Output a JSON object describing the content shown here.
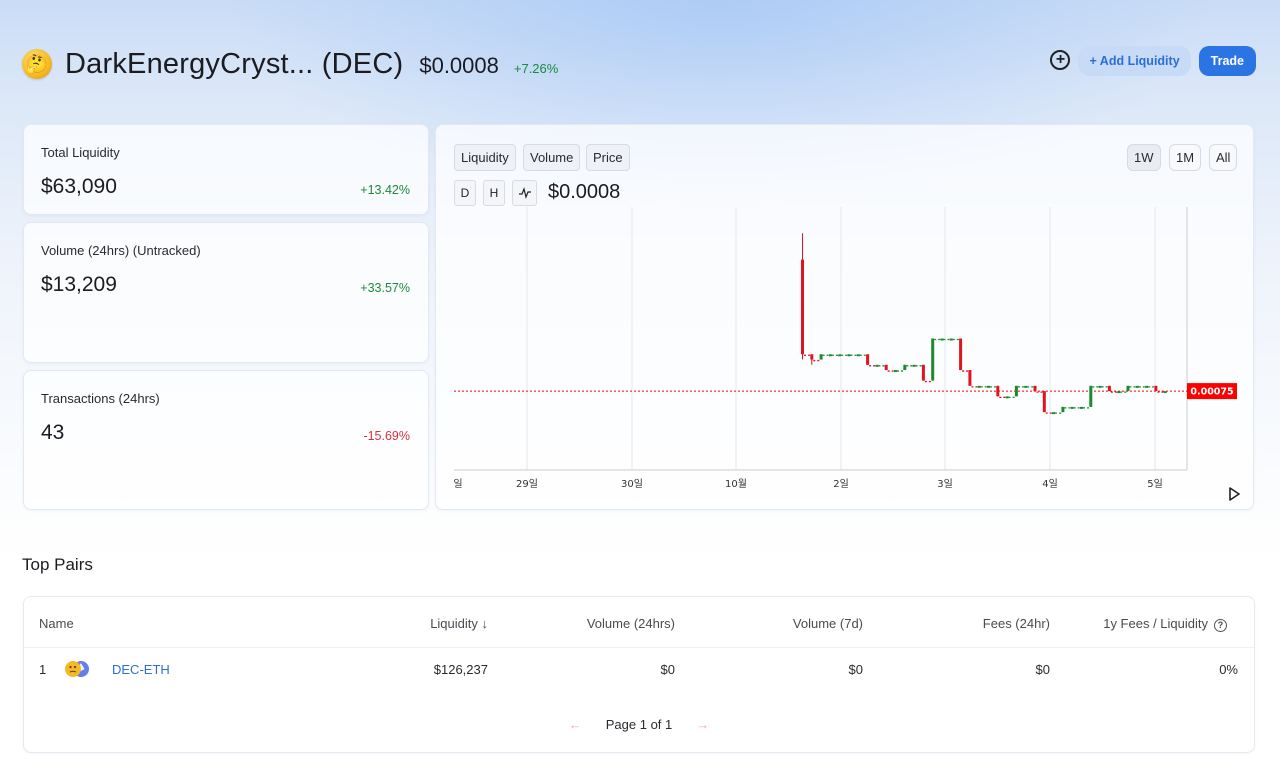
{
  "header": {
    "logo_icon": "thinking-face-icon",
    "token_name": "DarkEnergyCryst... (DEC)",
    "price": "$0.0008",
    "change": "+7.26%",
    "add_liquidity_label": "+ Add Liquidity",
    "trade_label": "Trade",
    "plus_icon": "plus-circle-icon"
  },
  "stats": [
    {
      "label": "Total Liquidity",
      "value": "$63,090",
      "change": "+13.42%"
    },
    {
      "label": "Volume (24hrs) (Untracked)",
      "value": "$13,209",
      "change": "+33.57%"
    },
    {
      "label": "Transactions (24hrs)",
      "value": "43",
      "change": "-15.69%"
    }
  ],
  "chart": {
    "tabs": [
      "Liquidity",
      "Volume",
      "Price"
    ],
    "ranges": [
      "1W",
      "1M",
      "All"
    ],
    "active_range": "1W",
    "candle_buttons": [
      "D",
      "H"
    ],
    "line_icon": "line-chart-icon",
    "current_price": "$0.0008",
    "price_marker": "0.00075",
    "colors": {
      "up": "#1e8a2e",
      "down": "#e0141e",
      "marker": "#ff0000"
    }
  },
  "chart_data": {
    "type": "candlestick",
    "x_tick_labels": [
      "일",
      "29일",
      "30일",
      "10월",
      "2일",
      "3일",
      "4일",
      "5일"
    ],
    "current_price_line": 0.00075,
    "grid": "vertical only",
    "candles": [
      {
        "o": 0.001,
        "c": 0.00082,
        "h": 0.00105,
        "l": 0.00081
      },
      {
        "o": 0.00082,
        "c": 0.00081,
        "h": 0.00082,
        "l": 0.0008
      },
      {
        "o": 0.00081,
        "c": 0.00082,
        "h": 0.00082,
        "l": 0.00081
      },
      {
        "o": 0.00082,
        "c": 0.00082,
        "h": 0.00082,
        "l": 0.00082
      },
      {
        "o": 0.00082,
        "c": 0.00082,
        "h": 0.00082,
        "l": 0.00082
      },
      {
        "o": 0.00082,
        "c": 0.00082,
        "h": 0.00082,
        "l": 0.00082
      },
      {
        "o": 0.00082,
        "c": 0.00082,
        "h": 0.00082,
        "l": 0.00082
      },
      {
        "o": 0.00082,
        "c": 0.0008,
        "h": 0.00082,
        "l": 0.0008
      },
      {
        "o": 0.0008,
        "c": 0.0008,
        "h": 0.0008,
        "l": 0.0008
      },
      {
        "o": 0.0008,
        "c": 0.00079,
        "h": 0.0008,
        "l": 0.00079
      },
      {
        "o": 0.00079,
        "c": 0.00079,
        "h": 0.00079,
        "l": 0.00079
      },
      {
        "o": 0.00079,
        "c": 0.0008,
        "h": 0.0008,
        "l": 0.00079
      },
      {
        "o": 0.0008,
        "c": 0.0008,
        "h": 0.0008,
        "l": 0.0008
      },
      {
        "o": 0.0008,
        "c": 0.00077,
        "h": 0.0008,
        "l": 0.00077
      },
      {
        "o": 0.00077,
        "c": 0.00085,
        "h": 0.00085,
        "l": 0.00077
      },
      {
        "o": 0.00085,
        "c": 0.00085,
        "h": 0.00085,
        "l": 0.00085
      },
      {
        "o": 0.00085,
        "c": 0.00085,
        "h": 0.00085,
        "l": 0.00085
      },
      {
        "o": 0.00085,
        "c": 0.00079,
        "h": 0.00085,
        "l": 0.00079
      },
      {
        "o": 0.00079,
        "c": 0.00076,
        "h": 0.00079,
        "l": 0.00076
      },
      {
        "o": 0.00076,
        "c": 0.00076,
        "h": 0.00076,
        "l": 0.00076
      },
      {
        "o": 0.00076,
        "c": 0.00076,
        "h": 0.00076,
        "l": 0.00076
      },
      {
        "o": 0.00076,
        "c": 0.00074,
        "h": 0.00076,
        "l": 0.00074
      },
      {
        "o": 0.00074,
        "c": 0.00074,
        "h": 0.00074,
        "l": 0.00074
      },
      {
        "o": 0.00074,
        "c": 0.00076,
        "h": 0.00076,
        "l": 0.00074
      },
      {
        "o": 0.00076,
        "c": 0.00076,
        "h": 0.00076,
        "l": 0.00076
      },
      {
        "o": 0.00076,
        "c": 0.00075,
        "h": 0.00076,
        "l": 0.00075
      },
      {
        "o": 0.00075,
        "c": 0.00071,
        "h": 0.00075,
        "l": 0.00071
      },
      {
        "o": 0.00071,
        "c": 0.00071,
        "h": 0.00071,
        "l": 0.00071
      },
      {
        "o": 0.00071,
        "c": 0.00072,
        "h": 0.00072,
        "l": 0.00071
      },
      {
        "o": 0.00072,
        "c": 0.00072,
        "h": 0.00072,
        "l": 0.00072
      },
      {
        "o": 0.00072,
        "c": 0.00072,
        "h": 0.00072,
        "l": 0.00072
      },
      {
        "o": 0.00072,
        "c": 0.00076,
        "h": 0.00076,
        "l": 0.00072
      },
      {
        "o": 0.00076,
        "c": 0.00076,
        "h": 0.00076,
        "l": 0.00076
      },
      {
        "o": 0.00076,
        "c": 0.00075,
        "h": 0.00076,
        "l": 0.00075
      },
      {
        "o": 0.00075,
        "c": 0.00075,
        "h": 0.00075,
        "l": 0.00075
      },
      {
        "o": 0.00075,
        "c": 0.00076,
        "h": 0.00076,
        "l": 0.00075
      },
      {
        "o": 0.00076,
        "c": 0.00076,
        "h": 0.00076,
        "l": 0.00076
      },
      {
        "o": 0.00076,
        "c": 0.00076,
        "h": 0.00076,
        "l": 0.00076
      },
      {
        "o": 0.00076,
        "c": 0.00075,
        "h": 0.00076,
        "l": 0.00075
      },
      {
        "o": 0.00075,
        "c": 0.00075,
        "h": 0.00075,
        "l": 0.00075
      }
    ]
  },
  "top_pairs": {
    "title": "Top Pairs",
    "columns": [
      "Name",
      "Liquidity ↓",
      "Volume (24hrs)",
      "Volume (7d)",
      "Fees (24hr)",
      "1y Fees / Liquidity"
    ],
    "rows": [
      {
        "index": "1",
        "pair": "DEC-ETH",
        "liquidity": "$126,237",
        "volume_24h": "$0",
        "volume_7d": "$0",
        "fees_24h": "$0",
        "fees_liquidity": "0%"
      }
    ],
    "pager": {
      "prev": "←",
      "label": "Page 1 of 1",
      "next": "→"
    },
    "help_icon": "question-circle-icon"
  }
}
